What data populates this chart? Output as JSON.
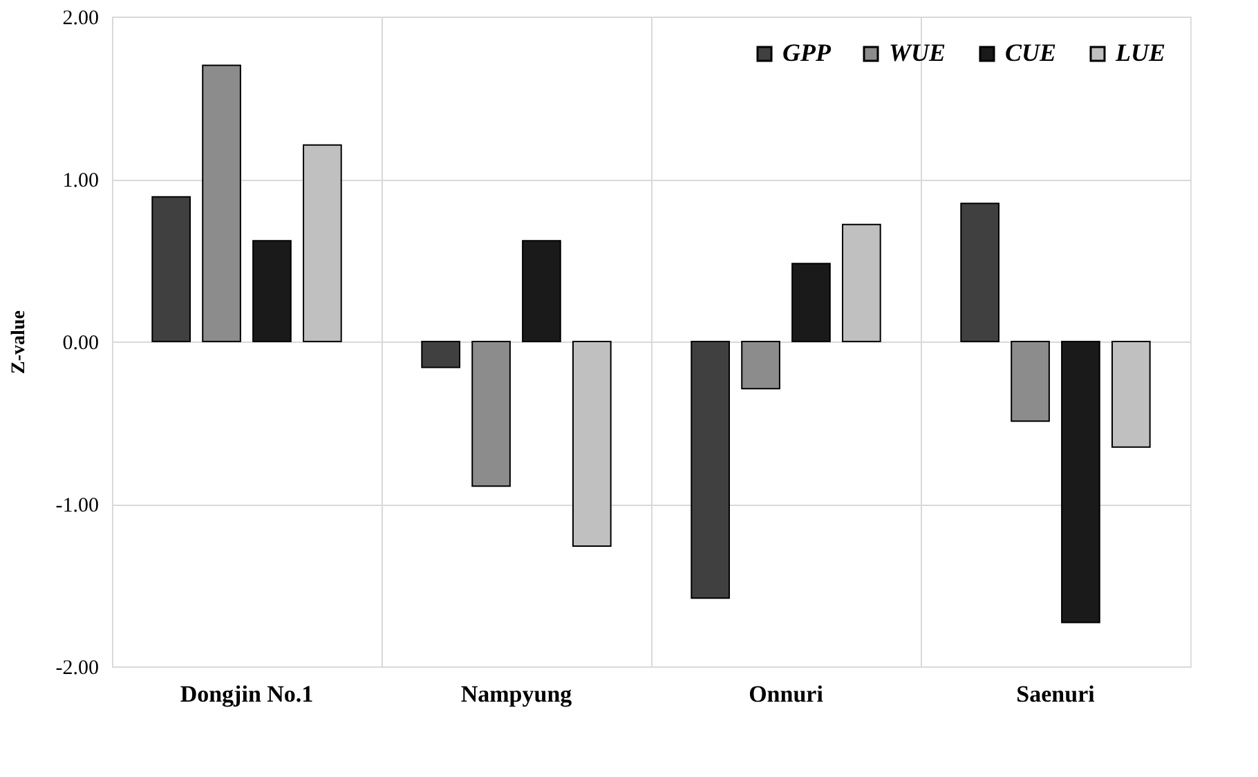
{
  "chart_data": {
    "type": "bar",
    "ylabel": "Z-value",
    "categories": [
      "Dongjin No.1",
      "Nampyung",
      "Onnuri",
      "Saenuri"
    ],
    "series": [
      {
        "name": "GPP",
        "color": "#404040",
        "values": [
          0.89,
          -0.16,
          -1.58,
          0.85
        ]
      },
      {
        "name": "WUE",
        "color": "#8c8c8c",
        "values": [
          1.7,
          -0.89,
          -0.29,
          -0.49
        ]
      },
      {
        "name": "CUE",
        "color": "#1a1a1a",
        "values": [
          0.62,
          0.62,
          0.48,
          -1.73
        ]
      },
      {
        "name": "LUE",
        "color": "#c0c0c0",
        "values": [
          1.21,
          -1.26,
          0.72,
          -0.65
        ]
      }
    ],
    "ylim": [
      -2,
      2
    ],
    "yticks": [
      {
        "value": -2,
        "label": "-2.00"
      },
      {
        "value": -1,
        "label": "-1.00"
      },
      {
        "value": 0,
        "label": "0.00"
      },
      {
        "value": 1,
        "label": "1.00"
      },
      {
        "value": 2,
        "label": "2.00"
      }
    ],
    "grid": true,
    "legend": "top right"
  }
}
